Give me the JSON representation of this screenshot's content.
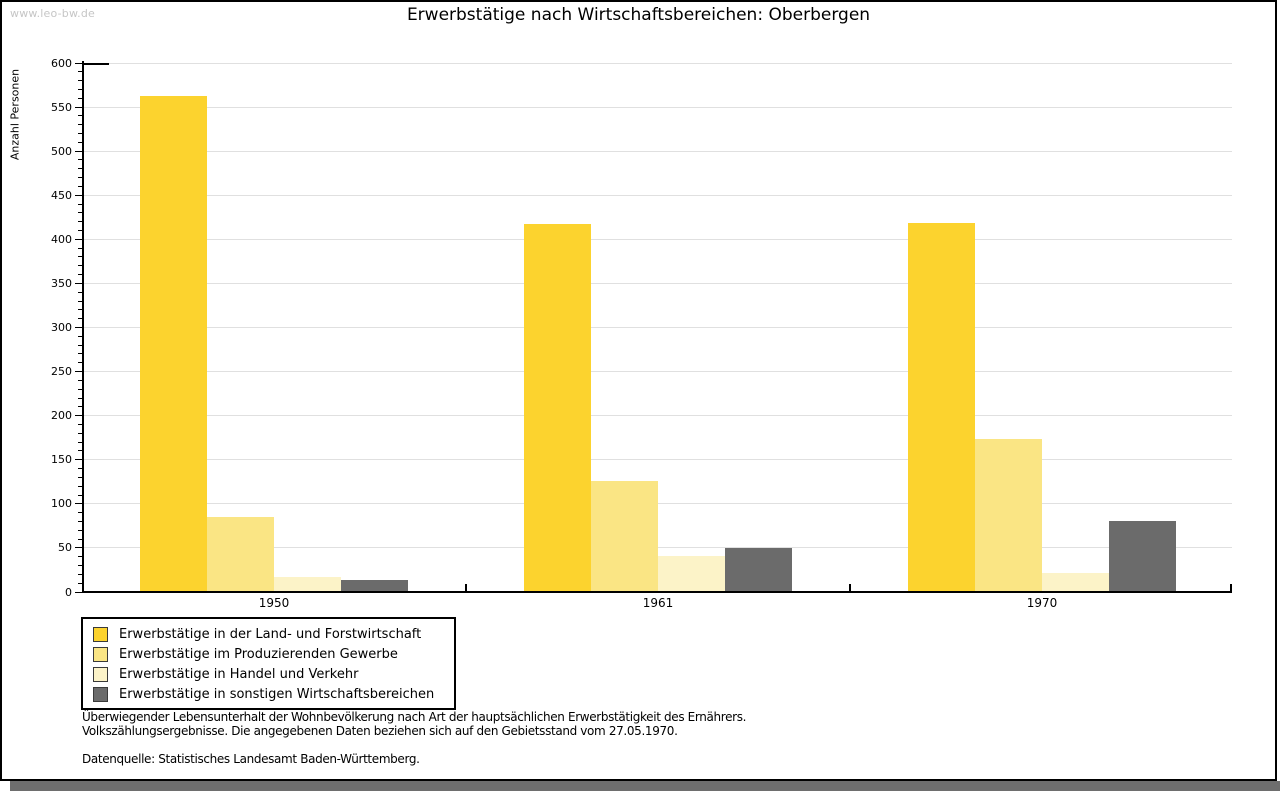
{
  "watermark": "www.leo-bw.de",
  "header": {
    "title": "Erwerbstätige nach Wirtschaftsbereichen: Oberbergen"
  },
  "footnotes": {
    "line1": "Überwiegender Lebensunterhalt der Wohnbevölkerung nach Art der hauptsächlichen Erwerbstätigkeit des Ernährers.",
    "line2": "Volkszählungsergebnisse. Die angegebenen Daten beziehen sich auf den Gebietsstand vom 27.05.1970.",
    "source": "Datenquelle: Statistisches Landesamt Baden-Württemberg."
  },
  "colors": {
    "grid": "#e0e0e0",
    "axis": "#000000",
    "watermark": "#c6c6c6",
    "frame_border": "#000000",
    "shadow": "#6e6e6e"
  },
  "chart_data": {
    "type": "bar",
    "title": "Erwerbstätige nach Wirtschaftsbereichen: Oberbergen",
    "xlabel": "",
    "ylabel": "Anzahl Personen",
    "categories": [
      "1950",
      "1961",
      "1970"
    ],
    "series": [
      {
        "name": "Erwerbstätige in der Land- und Forstwirtschaft",
        "color": "#fcd32e",
        "values": [
          563,
          417,
          418
        ]
      },
      {
        "name": "Erwerbstätige im Produzierenden Gewerbe",
        "color": "#fae584",
        "values": [
          85,
          126,
          174
        ]
      },
      {
        "name": "Erwerbstätige in Handel und Verkehr",
        "color": "#fcf3c8",
        "values": [
          17,
          41,
          22
        ]
      },
      {
        "name": "Erwerbstätige in sonstigen Wirtschaftsbereichen",
        "color": "#6b6b6b",
        "values": [
          14,
          50,
          80
        ]
      }
    ],
    "ylim": [
      0,
      600
    ],
    "ytick_step": 50,
    "yminor_step": 10,
    "grid": true,
    "legend_position": "bottom-left"
  }
}
